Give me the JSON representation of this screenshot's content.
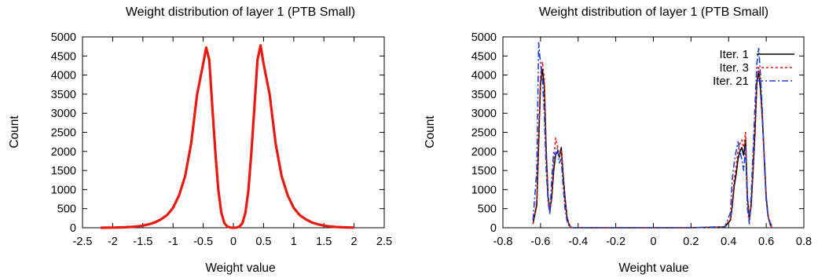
{
  "chart_data": [
    {
      "type": "line",
      "title": "Weight distribution of layer 1 (PTB Small)",
      "xlabel": "Weight value",
      "ylabel": "Count",
      "xlim": [
        -2.5,
        2.5
      ],
      "ylim": [
        0,
        5000
      ],
      "xticks": [
        "-2.5",
        "-2",
        "-1.5",
        "-1",
        "-0.5",
        "0",
        "0.5",
        "1",
        "1.5",
        "2",
        "2.5"
      ],
      "yticks": [
        "0",
        "500",
        "1000",
        "1500",
        "2000",
        "2500",
        "3000",
        "3500",
        "4000",
        "4500",
        "5000"
      ],
      "grid": false,
      "series": [
        {
          "color": "#e8190f",
          "x": [
            -2.2,
            -2.1,
            -2.0,
            -1.9,
            -1.8,
            -1.7,
            -1.6,
            -1.5,
            -1.4,
            -1.3,
            -1.2,
            -1.1,
            -1.0,
            -0.9,
            -0.8,
            -0.7,
            -0.6,
            -0.5,
            -0.45,
            -0.4,
            -0.35,
            -0.3,
            -0.25,
            -0.2,
            -0.15,
            -0.1,
            -0.05,
            0.0,
            0.05,
            0.1,
            0.15,
            0.2,
            0.25,
            0.3,
            0.35,
            0.4,
            0.45,
            0.5,
            0.6,
            0.7,
            0.8,
            0.9,
            1.0,
            1.1,
            1.2,
            1.3,
            1.4,
            1.5,
            1.6,
            1.7,
            1.8,
            1.9,
            2.0
          ],
          "y": [
            0,
            2,
            4,
            8,
            12,
            20,
            35,
            55,
            90,
            140,
            220,
            330,
            520,
            850,
            1350,
            2200,
            3500,
            4300,
            4720,
            4400,
            3200,
            2000,
            1000,
            400,
            120,
            30,
            5,
            0,
            5,
            30,
            120,
            400,
            1000,
            2000,
            3200,
            4400,
            4780,
            4300,
            3500,
            2200,
            1350,
            850,
            520,
            330,
            220,
            140,
            90,
            55,
            35,
            20,
            12,
            8,
            4
          ]
        }
      ]
    },
    {
      "type": "line",
      "title": "Weight distribution of layer 1 (PTB Small)",
      "xlabel": "Weight value",
      "ylabel": "Count",
      "xlim": [
        -0.8,
        0.8
      ],
      "ylim": [
        0,
        5000
      ],
      "xticks": [
        "-0.8",
        "-0.6",
        "-0.4",
        "-0.2",
        "0",
        "0.2",
        "0.4",
        "0.6",
        "0.8"
      ],
      "yticks": [
        "0",
        "500",
        "1000",
        "1500",
        "2000",
        "2500",
        "3000",
        "3500",
        "4000",
        "4500",
        "5000"
      ],
      "grid": false,
      "legend": "top-right",
      "series": [
        {
          "name": "Iter.  1",
          "color": "#000000",
          "dash": "",
          "x": [
            -0.64,
            -0.62,
            -0.61,
            -0.6,
            -0.59,
            -0.58,
            -0.57,
            -0.56,
            -0.55,
            -0.54,
            -0.53,
            -0.52,
            -0.51,
            -0.5,
            -0.49,
            -0.48,
            -0.47,
            -0.46,
            -0.45,
            -0.44,
            -0.43,
            -0.42,
            -0.4,
            -0.2,
            0.0,
            0.2,
            0.38,
            0.41,
            0.42,
            0.43,
            0.44,
            0.45,
            0.46,
            0.47,
            0.48,
            0.49,
            0.5,
            0.51,
            0.52,
            0.53,
            0.54,
            0.55,
            0.56,
            0.57,
            0.58,
            0.59,
            0.6,
            0.61,
            0.62,
            0.63
          ],
          "y": [
            100,
            600,
            2200,
            3800,
            4150,
            3700,
            2000,
            800,
            450,
            800,
            1500,
            1900,
            2000,
            1850,
            2100,
            1400,
            800,
            300,
            100,
            20,
            5,
            0,
            0,
            0,
            0,
            0,
            20,
            200,
            600,
            1100,
            1400,
            1800,
            2000,
            2100,
            1900,
            2300,
            800,
            200,
            600,
            1500,
            2500,
            3800,
            4100,
            3600,
            2800,
            1800,
            800,
            300,
            100,
            0
          ]
        },
        {
          "name": "Iter.  3",
          "color": "#e8190f",
          "dash": "3,3",
          "x": [
            -0.64,
            -0.62,
            -0.61,
            -0.6,
            -0.59,
            -0.58,
            -0.57,
            -0.56,
            -0.55,
            -0.54,
            -0.53,
            -0.52,
            -0.51,
            -0.5,
            -0.49,
            -0.48,
            -0.47,
            -0.46,
            -0.45,
            -0.44,
            -0.43,
            -0.42,
            -0.4,
            -0.2,
            0.0,
            0.2,
            0.38,
            0.41,
            0.42,
            0.43,
            0.44,
            0.45,
            0.46,
            0.47,
            0.48,
            0.49,
            0.5,
            0.51,
            0.52,
            0.53,
            0.54,
            0.55,
            0.56,
            0.57,
            0.58,
            0.59,
            0.6,
            0.61,
            0.62,
            0.63
          ],
          "y": [
            100,
            700,
            2500,
            4000,
            4350,
            3900,
            2100,
            800,
            400,
            900,
            1700,
            2350,
            2150,
            1900,
            2000,
            1300,
            700,
            300,
            100,
            20,
            5,
            0,
            0,
            0,
            0,
            0,
            20,
            250,
            700,
            1300,
            1600,
            2000,
            2200,
            2300,
            2100,
            2500,
            800,
            200,
            700,
            1600,
            2700,
            3900,
            4200,
            3800,
            2900,
            1900,
            800,
            300,
            100,
            0
          ]
        },
        {
          "name": "Iter. 21",
          "color": "#1f3fd6",
          "dash": "8,3,2,3",
          "x": [
            -0.64,
            -0.62,
            -0.61,
            -0.6,
            -0.59,
            -0.58,
            -0.57,
            -0.56,
            -0.55,
            -0.54,
            -0.53,
            -0.52,
            -0.51,
            -0.5,
            -0.49,
            -0.48,
            -0.47,
            -0.46,
            -0.45,
            -0.44,
            -0.43,
            -0.42,
            -0.4,
            -0.2,
            0.0,
            0.2,
            0.38,
            0.41,
            0.42,
            0.43,
            0.44,
            0.45,
            0.46,
            0.47,
            0.48,
            0.49,
            0.5,
            0.51,
            0.52,
            0.53,
            0.54,
            0.55,
            0.56,
            0.57,
            0.58,
            0.59,
            0.6,
            0.61,
            0.62,
            0.63
          ],
          "y": [
            200,
            1500,
            4850,
            4300,
            3900,
            3000,
            1500,
            700,
            350,
            1300,
            2000,
            1900,
            2100,
            1700,
            1800,
            1100,
            500,
            200,
            60,
            15,
            5,
            0,
            0,
            0,
            0,
            0,
            30,
            400,
            1300,
            1700,
            2000,
            2250,
            2000,
            1800,
            1500,
            2100,
            500,
            100,
            900,
            2000,
            3200,
            4300,
            4700,
            4000,
            3000,
            1700,
            700,
            300,
            150,
            50
          ]
        }
      ]
    }
  ]
}
